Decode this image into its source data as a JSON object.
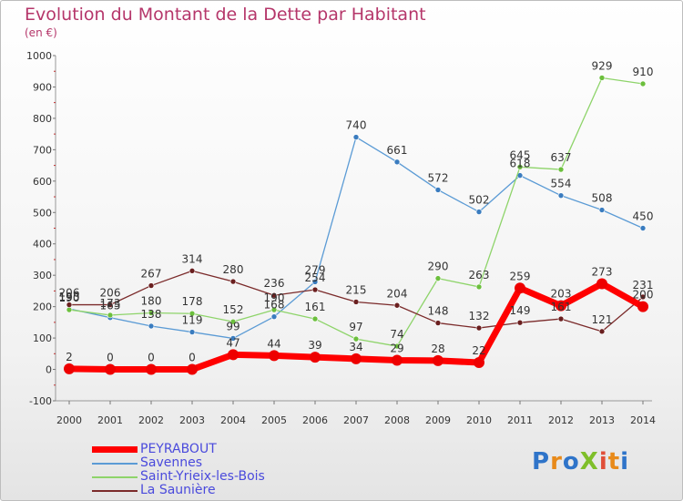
{
  "title": "Evolution du Montant de la Dette par Habitant",
  "subtitle": "(en €)",
  "logo": {
    "text": "ProXiti",
    "letters": [
      {
        "ch": "P",
        "color": "#2f74c9"
      },
      {
        "ch": "r",
        "color": "#e88a1a"
      },
      {
        "ch": "o",
        "color": "#2f74c9"
      },
      {
        "ch": "X",
        "color": "#7fbf2a"
      },
      {
        "ch": "i",
        "color": "#e04e39"
      },
      {
        "ch": "t",
        "color": "#e88a1a"
      },
      {
        "ch": "i",
        "color": "#2f74c9"
      }
    ]
  },
  "chart_data": {
    "type": "line",
    "title": "Evolution du Montant de la Dette par Habitant",
    "ylabel": "(en €)",
    "xlabel": "",
    "x": [
      "2000",
      "2001",
      "2002",
      "2003",
      "2004",
      "2005",
      "2006",
      "2007",
      "2008",
      "2009",
      "2010",
      "2011",
      "2012",
      "2013",
      "2014"
    ],
    "ylim": [
      -100,
      1000
    ],
    "yticks": [
      -100,
      0,
      100,
      200,
      300,
      400,
      500,
      600,
      700,
      800,
      900,
      1000
    ],
    "grid": false,
    "legend_position": "bottom-left",
    "series": [
      {
        "name": "Savennes",
        "color": "#5b9bd5",
        "marker": "#3a7cbf",
        "width": 1.3,
        "values": [
          193,
          165,
          138,
          119,
          99,
          168,
          279,
          740,
          661,
          572,
          502,
          618,
          554,
          508,
          450
        ],
        "labels": [
          "193",
          "165",
          "138",
          "119",
          "99",
          "168",
          "279",
          "740",
          "661",
          "572",
          "502",
          "618",
          "554",
          "508",
          "450"
        ]
      },
      {
        "name": "Saint-Yrieix-les-Bois",
        "color": "#8ed46a",
        "marker": "#6cbf3d",
        "width": 1.3,
        "values": [
          190,
          173,
          180,
          178,
          152,
          190,
          161,
          97,
          74,
          290,
          263,
          645,
          637,
          929,
          910
        ],
        "labels": [
          "190",
          "173",
          "180",
          "178",
          "152",
          "190",
          "161",
          "97",
          "74",
          "290",
          "263",
          "645",
          "637",
          "929",
          "910"
        ]
      },
      {
        "name": "La Saunière",
        "color": "#7b2b2b",
        "marker": "#6a1f1f",
        "width": 1.3,
        "values": [
          206,
          206,
          267,
          314,
          280,
          236,
          254,
          215,
          204,
          148,
          132,
          149,
          161,
          121,
          231
        ],
        "labels": [
          "206",
          "206",
          "267",
          "314",
          "280",
          "236",
          "254",
          "215",
          "204",
          "148",
          "132",
          "149",
          "161",
          "121",
          "231"
        ]
      },
      {
        "name": "PEYRABOUT",
        "color": "#ff0000",
        "marker": "#ee0000",
        "width": 7,
        "values": [
          2,
          0,
          0,
          0,
          47,
          44,
          39,
          34,
          29,
          28,
          22,
          259,
          203,
          273,
          200
        ],
        "labels": [
          "2",
          "0",
          "0",
          "0",
          "47",
          "44",
          "39",
          "34",
          "29",
          "28",
          "22",
          "259",
          "203",
          "273",
          "200"
        ]
      }
    ]
  },
  "legend": [
    {
      "label": "PEYRABOUT",
      "color": "#ff0000"
    },
    {
      "label": "Savennes",
      "color": "#5b9bd5"
    },
    {
      "label": "Saint-Yrieix-les-Bois",
      "color": "#8ed46a"
    },
    {
      "label": "La Saunière",
      "color": "#7b2b2b"
    }
  ]
}
